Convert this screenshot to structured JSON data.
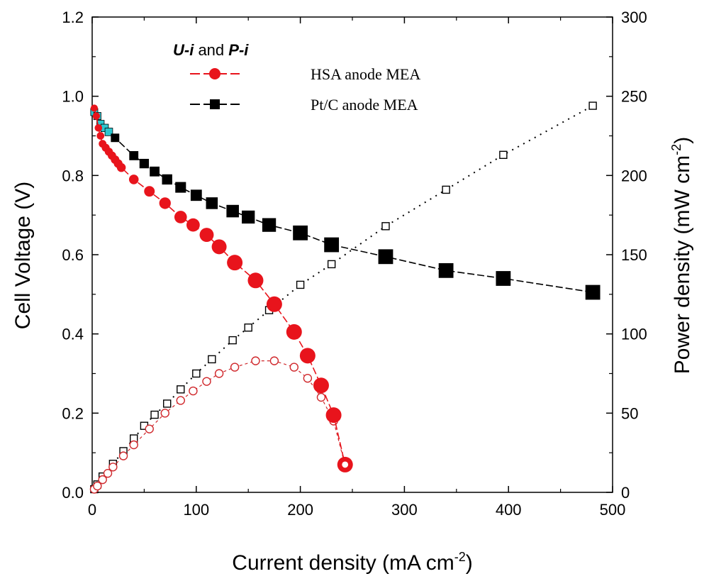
{
  "chart_data": {
    "type": "line",
    "xlabel": "Current density (mA cm",
    "xlabel_sup": "-2",
    "xlabel_close": ")",
    "ylabel_left": "Cell Voltage (V)",
    "ylabel_right": "Power density (mW cm",
    "ylabel_right_sup": "-2",
    "ylabel_right_close": ")",
    "xlim": [
      0,
      500
    ],
    "ylim_left": [
      0,
      1.2
    ],
    "ylim_right": [
      0,
      300
    ],
    "x_ticks": [
      "0",
      "100",
      "200",
      "300",
      "400",
      "500"
    ],
    "y_left_ticks": [
      "0.0",
      "0.2",
      "0.4",
      "0.6",
      "0.8",
      "1.0",
      "1.2"
    ],
    "y_right_ticks": [
      "0",
      "50",
      "100",
      "150",
      "200",
      "250",
      "300"
    ],
    "legend": {
      "title_part1": "U-i",
      "title_part2": " and ",
      "title_part3": "P-i",
      "entries": [
        {
          "label": "HSA anode MEA",
          "color": "#e8141c",
          "marker": "circle"
        },
        {
          "label": "Pt/C anode MEA",
          "color": "#000000",
          "marker": "square"
        }
      ]
    },
    "series": [
      {
        "name": "HSA anode MEA U-i",
        "axis": "left",
        "color": "#e8141c",
        "marker": "filled-circle",
        "x": [
          2,
          4,
          6,
          8,
          10,
          13,
          16,
          19,
          22,
          25,
          28,
          40,
          55,
          70,
          85,
          97,
          110,
          122,
          137,
          157,
          175,
          194,
          207,
          220,
          232,
          243
        ],
        "y": [
          0.97,
          0.95,
          0.92,
          0.9,
          0.88,
          0.87,
          0.86,
          0.85,
          0.84,
          0.83,
          0.82,
          0.79,
          0.76,
          0.73,
          0.695,
          0.675,
          0.65,
          0.62,
          0.58,
          0.535,
          0.475,
          0.405,
          0.345,
          0.27,
          0.195,
          0.07
        ]
      },
      {
        "name": "Pt/C anode MEA U-i",
        "axis": "left",
        "color": "#000000",
        "marker": "filled-square",
        "x": [
          2,
          5,
          8,
          12,
          16,
          22,
          40,
          50,
          60,
          72,
          85,
          100,
          115,
          135,
          150,
          170,
          200,
          230,
          282,
          340,
          395,
          481
        ],
        "y": [
          0.96,
          0.95,
          0.93,
          0.92,
          0.91,
          0.895,
          0.85,
          0.83,
          0.81,
          0.79,
          0.77,
          0.75,
          0.73,
          0.71,
          0.695,
          0.675,
          0.655,
          0.625,
          0.595,
          0.56,
          0.54,
          0.505
        ]
      },
      {
        "name": "HSA anode MEA P-i",
        "axis": "right",
        "color": "#d0282c",
        "marker": "open-circle",
        "x": [
          2,
          5,
          10,
          15,
          20,
          30,
          40,
          55,
          70,
          85,
          97,
          110,
          122,
          137,
          157,
          175,
          194,
          207,
          220,
          232,
          243
        ],
        "y": [
          2,
          4,
          8,
          12,
          16,
          23,
          30,
          40,
          50,
          58,
          64,
          70,
          75,
          79,
          83,
          83,
          79,
          72,
          60,
          45,
          17
        ]
      },
      {
        "name": "Pt/C anode MEA P-i",
        "axis": "right",
        "color": "#000000",
        "marker": "open-square",
        "x": [
          2,
          5,
          10,
          20,
          30,
          40,
          50,
          60,
          72,
          85,
          100,
          115,
          135,
          150,
          170,
          200,
          230,
          282,
          340,
          395,
          481
        ],
        "y": [
          2,
          5,
          10,
          18,
          26,
          34,
          42,
          49,
          56,
          65,
          75,
          84,
          96,
          104,
          115,
          131,
          144,
          168,
          191,
          213,
          244
        ]
      }
    ]
  }
}
